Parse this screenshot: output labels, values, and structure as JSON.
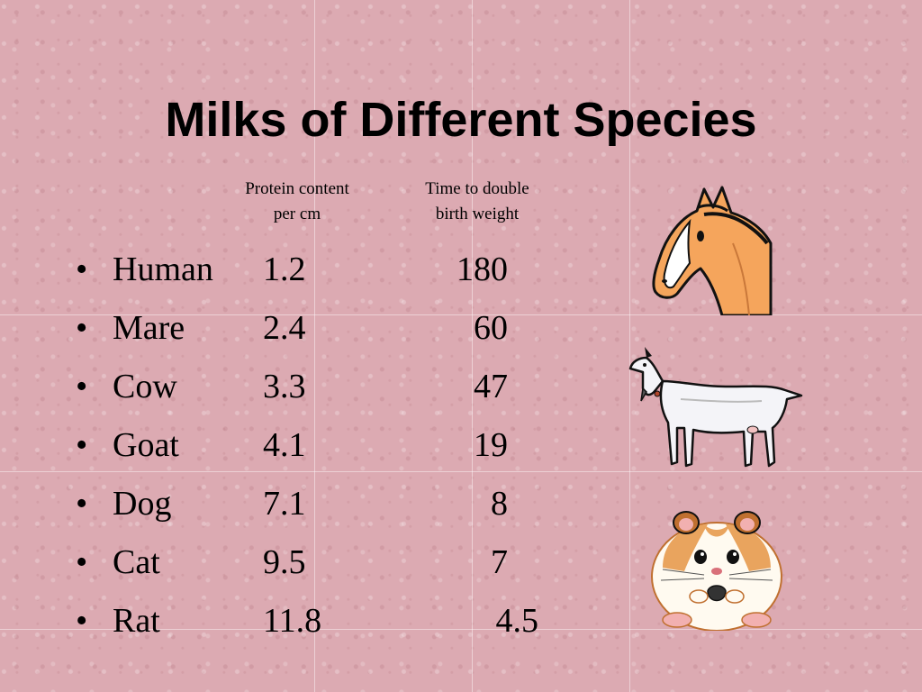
{
  "slide": {
    "title": "Milks of Different Species",
    "columns": {
      "protein": [
        "Protein content",
        "per cm"
      ],
      "double_time": [
        "Time to double",
        "birth weight"
      ]
    },
    "bullet": "•",
    "rows": [
      {
        "species": "Human",
        "protein": "1.2",
        "days": "180"
      },
      {
        "species": "Mare",
        "protein": "2.4",
        "days": "60"
      },
      {
        "species": "Cow",
        "protein": "3.3",
        "days": "47"
      },
      {
        "species": "Goat",
        "protein": "4.1",
        "days": "19"
      },
      {
        "species": "Dog",
        "protein": "7.1",
        "days": "8"
      },
      {
        "species": "Cat",
        "protein": "9.5",
        "days": "7"
      },
      {
        "species": "Rat",
        "protein": "11.8",
        "days": "4.5"
      }
    ]
  },
  "images": [
    "horse-clipart",
    "goat-clipart",
    "hamster-clipart"
  ],
  "colors": {
    "background": "#dcaab2",
    "horse": "#f5a55c",
    "hamster": "#e9a45e"
  }
}
